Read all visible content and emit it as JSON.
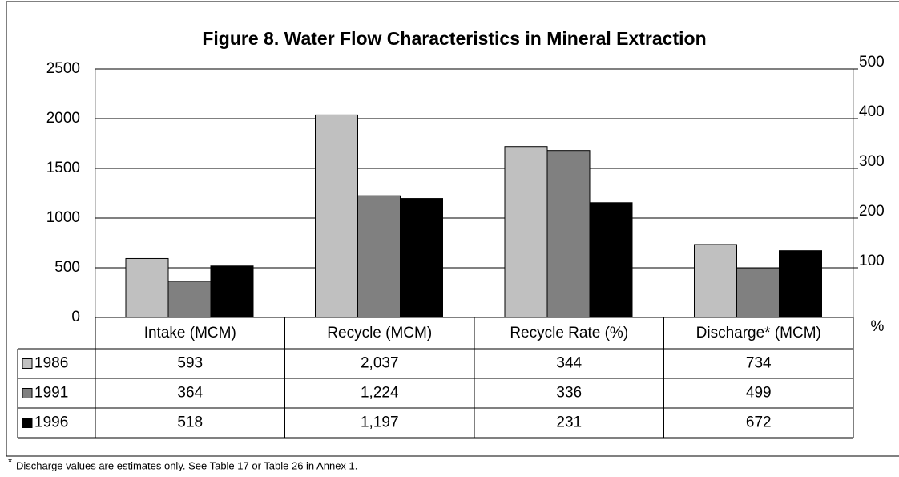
{
  "chart_data": {
    "type": "bar",
    "title": "Figure 8.  Water Flow Characteristics in Mineral Extraction",
    "categories": [
      "Intake (MCM)",
      "Recycle (MCM)",
      "Recycle Rate (%)",
      "Discharge* (MCM)"
    ],
    "category_axis": [
      "y",
      "y",
      "y2",
      "y"
    ],
    "series": [
      {
        "name": "1986",
        "color": "#c0c0c0",
        "values": [
          593,
          2037,
          344,
          734
        ],
        "value_labels": [
          "593",
          "2,037",
          "344",
          "734"
        ]
      },
      {
        "name": "1991",
        "color": "#808080",
        "values": [
          364,
          1224,
          336,
          499
        ],
        "value_labels": [
          "364",
          "1,224",
          "336",
          "499"
        ]
      },
      {
        "name": "1996",
        "color": "#000000",
        "values": [
          518,
          1197,
          231,
          672
        ],
        "value_labels": [
          "518",
          "1,197",
          "231",
          "672"
        ]
      }
    ],
    "ylim": [
      0,
      2500
    ],
    "yticks": [
      0,
      500,
      1000,
      1500,
      2000,
      2500
    ],
    "y2lim": [
      0,
      500
    ],
    "y2ticks": [
      100,
      200,
      300,
      400,
      500
    ],
    "y2_label": "%",
    "grid": true,
    "footnote_marker": "*",
    "footnote": "Discharge values are estimates only. See Table 17 or Table 26 in Annex 1."
  }
}
